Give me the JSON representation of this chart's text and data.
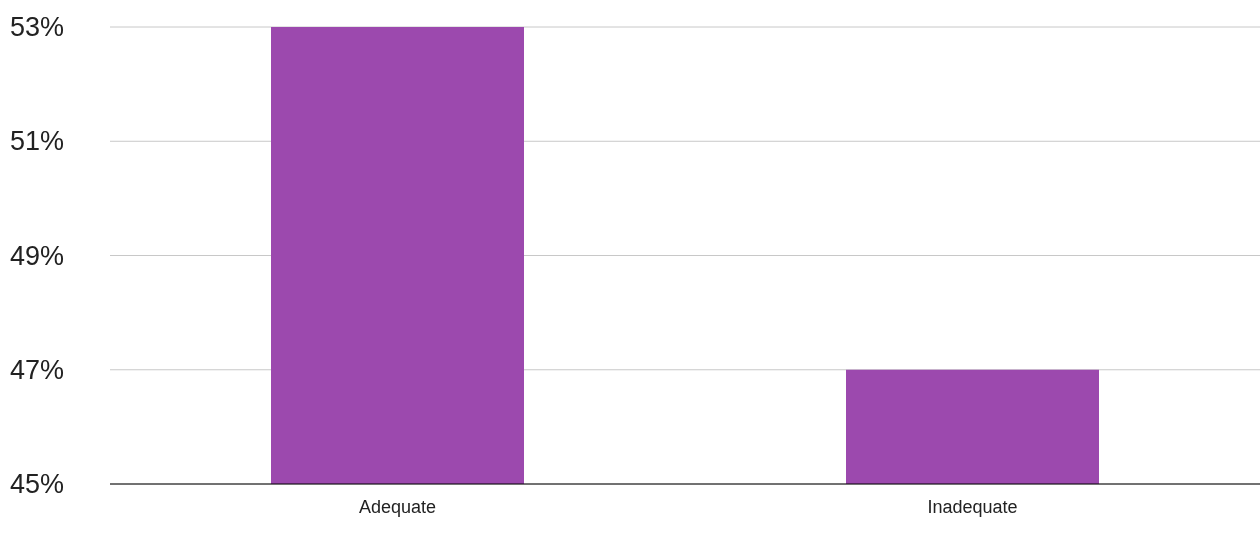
{
  "chart_data": {
    "type": "bar",
    "categories": [
      "Adequate",
      "Inadequate"
    ],
    "values": [
      53,
      47
    ],
    "color": "#9c49ae",
    "ylim": [
      45,
      53
    ],
    "yticks": [
      {
        "value": 45,
        "label": "45%"
      },
      {
        "value": 47,
        "label": "47%"
      },
      {
        "value": 49,
        "label": "49%"
      },
      {
        "value": 51,
        "label": "51%"
      },
      {
        "value": 53,
        "label": "53%"
      }
    ],
    "grid": "y"
  }
}
